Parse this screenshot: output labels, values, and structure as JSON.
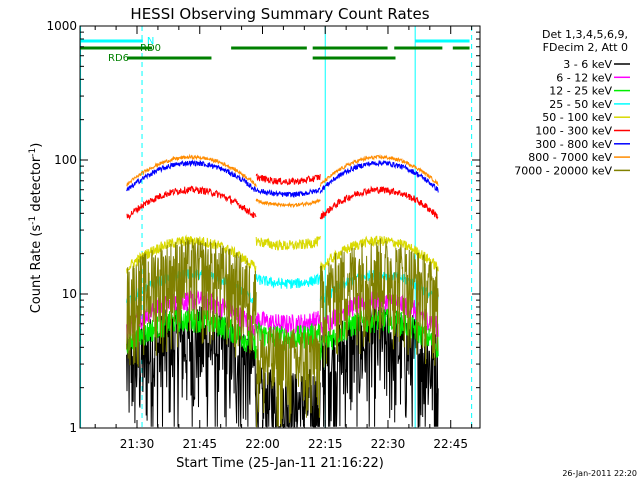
{
  "chart_data": {
    "type": "line",
    "title": "HESSI Observing Summary Count Rates",
    "xlabel": "Start Time (25-Jan-11 21:16:22)",
    "ylabel_main": "Count Rate (s",
    "ylabel_sup1": "-1",
    "ylabel_mid": " detector",
    "ylabel_sup2": "-1",
    "ylabel_end": ")",
    "yscale": "log",
    "ylim": [
      1,
      1000
    ],
    "xlim_min": [
      1276.37,
      1372
    ],
    "yticks": [
      {
        "v": 1,
        "label": "1"
      },
      {
        "v": 10,
        "label": "10"
      },
      {
        "v": 100,
        "label": "100"
      },
      {
        "v": 1000,
        "label": "1000"
      }
    ],
    "xticks": [
      {
        "min": 1290,
        "label": "21:30"
      },
      {
        "min": 1305,
        "label": "21:45"
      },
      {
        "min": 1320,
        "label": "22:00"
      },
      {
        "min": 1335,
        "label": "22:15"
      },
      {
        "min": 1350,
        "label": "22:30"
      },
      {
        "min": 1365,
        "label": "22:45"
      }
    ],
    "legend": {
      "header": [
        "Det 1,3,4,5,6,9,",
        "FDecim 2, Att 0"
      ],
      "position": "right"
    },
    "flags": {
      "N_label": "N",
      "RD0_label": "RD0",
      "RD6_label": "RD6",
      "N_segments": [
        [
          1276.4,
          1291.4
        ],
        [
          1356.5,
          1369.5
        ]
      ],
      "RD0_segments": [
        [
          1276.4,
          1293.6
        ],
        [
          1312.5,
          1315
        ],
        [
          1314.5,
          1330.6
        ],
        [
          1332,
          1349.9
        ],
        [
          1351.5,
          1363
        ],
        [
          1365.5,
          1369.5
        ]
      ],
      "RD6_segments": [
        [
          1287.6,
          1307.8
        ],
        [
          1332,
          1351.8
        ]
      ],
      "cyan_solid_lines": [
        1276.5,
        1335,
        1356.5
      ],
      "cyan_dashed_lines": [
        1291.2,
        1370
      ]
    },
    "series": [
      {
        "name": "3 - 6 keV",
        "color": "#000000",
        "day_peak": 4.5,
        "night": 1.6,
        "noise": 0.28
      },
      {
        "name": "6 - 12 keV",
        "color": "#ff00ff",
        "day_peak": 9,
        "night": 6.5,
        "noise": 0.06
      },
      {
        "name": "12 - 25 keV",
        "color": "#00ee00",
        "day_peak": 6.5,
        "night": 5.2,
        "noise": 0.07
      },
      {
        "name": "25 - 50 keV",
        "color": "#00ffff",
        "day_peak": 14,
        "night": 13,
        "noise": 0.03
      },
      {
        "name": "50 - 100 keV",
        "color": "#d9d900",
        "day_peak": 25,
        "night": 25,
        "noise": 0.03
      },
      {
        "name": "100 - 300 keV",
        "color": "#ff0000",
        "day_peak": 60,
        "night": 75,
        "noise": 0.02
      },
      {
        "name": "300 - 800 keV",
        "color": "#0000ff",
        "day_peak": 95,
        "night": 60,
        "noise": 0.015
      },
      {
        "name": "800 - 7000 keV",
        "color": "#ff8c00",
        "day_peak": 105,
        "night": 50,
        "noise": 0.01
      },
      {
        "name": "7000 - 20000 keV",
        "color": "#808000",
        "day_peak": 15,
        "night": 3.5,
        "noise": 0.25
      }
    ],
    "data_windows": [
      {
        "start": 1287.5,
        "end": 1318.5,
        "peak_at": 1303,
        "kind": "day"
      },
      {
        "start": 1318.5,
        "end": 1333.8,
        "kind": "night"
      },
      {
        "start": 1333.8,
        "end": 1362,
        "peak_at": 1348,
        "kind": "day"
      }
    ]
  },
  "footer": {
    "timestamp": "26-Jan-2011 22:20"
  }
}
